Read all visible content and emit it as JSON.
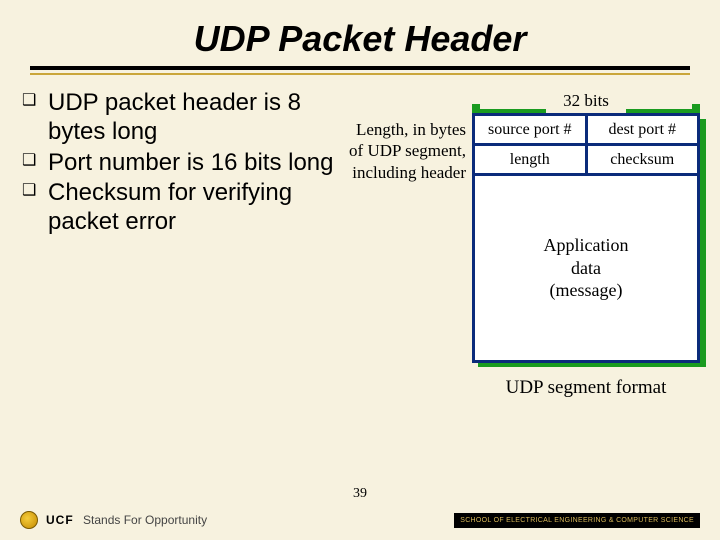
{
  "title": "UDP Packet Header",
  "title_rule": {
    "top_color": "#000000",
    "bottom_color": "#caa63a"
  },
  "bullets": [
    "UDP packet header is 8 bytes long",
    "Port number is 16 bits long",
    "Checksum for verifying packet error"
  ],
  "annotation": "Length, in bytes of UDP segment, including header",
  "diagram": {
    "bits_label": "32 bits",
    "bits_bar_color": "#1a9b1f",
    "border_color": "#0b2b7a",
    "background_color": "#ffffff",
    "shadow_color": "#1a9b1f",
    "header_rows": [
      [
        "source port #",
        "dest port #"
      ],
      [
        "length",
        "checksum"
      ]
    ],
    "payload": "Application\ndata\n(message)",
    "caption": "UDP segment format"
  },
  "footer": {
    "slide_number": "39",
    "ucf": "UCF",
    "tagline": "Stands For Opportunity",
    "school": "SCHOOL OF ELECTRICAL ENGINEERING & COMPUTER SCIENCE"
  },
  "colors": {
    "background": "#f7f2df",
    "text": "#000000"
  }
}
